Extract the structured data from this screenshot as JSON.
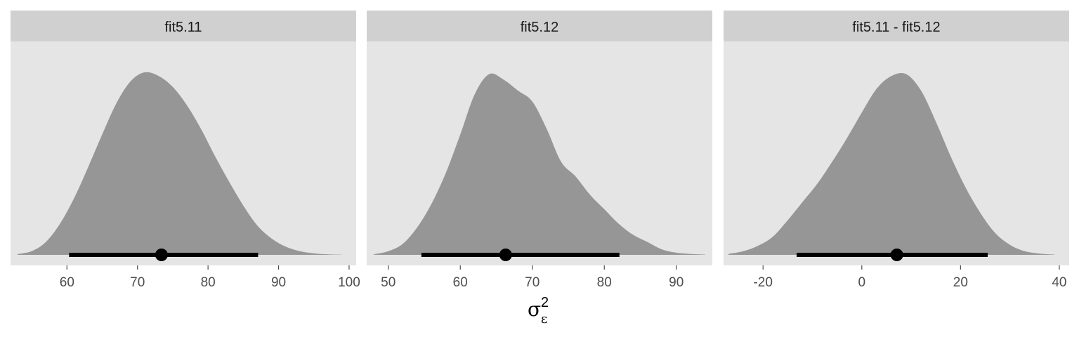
{
  "colors": {
    "panel_bg": "#e5e5e5",
    "strip_bg": "#d0d0d0",
    "density_fill": "#969696",
    "interval": "#000000",
    "tick": "#4d4d4d"
  },
  "chart_data": {
    "type": "area",
    "subtype": "faceted posterior density with point estimate and interval",
    "xlabel": {
      "symbol": "σ",
      "subscript": "ε",
      "superscript": "2"
    },
    "ylabel": "",
    "grid": false,
    "legend": "none",
    "facets": [
      {
        "name": "fit5.11",
        "xlim": [
          52,
          101
        ],
        "ticks": [
          "60",
          "70",
          "80",
          "90",
          "100"
        ],
        "tick_values": [
          60,
          70,
          80,
          90,
          100
        ],
        "x": [
          53,
          55,
          57,
          59,
          61,
          63,
          65,
          67,
          69,
          71,
          73,
          75,
          77,
          79,
          81,
          83,
          85,
          87,
          89,
          91,
          93,
          95,
          97,
          99
        ],
        "density": [
          0.004,
          0.02,
          0.07,
          0.17,
          0.31,
          0.48,
          0.66,
          0.83,
          0.95,
          1.0,
          0.98,
          0.92,
          0.82,
          0.69,
          0.54,
          0.4,
          0.27,
          0.16,
          0.09,
          0.045,
          0.02,
          0.008,
          0.003,
          0.001
        ],
        "point": 73.4,
        "interval": [
          60.3,
          87.1
        ]
      },
      {
        "name": "fit5.12",
        "xlim": [
          47,
          95
        ],
        "ticks": [
          "50",
          "60",
          "70",
          "80",
          "90"
        ],
        "tick_values": [
          50,
          60,
          70,
          80,
          90
        ],
        "x": [
          48,
          50,
          52,
          54,
          56,
          58,
          60,
          62,
          64,
          66,
          68,
          70,
          72,
          74,
          76,
          78,
          80,
          82,
          84,
          86,
          88,
          90,
          92,
          94
        ],
        "density": [
          0.003,
          0.02,
          0.06,
          0.15,
          0.28,
          0.45,
          0.66,
          0.88,
          0.99,
          0.96,
          0.9,
          0.84,
          0.69,
          0.51,
          0.43,
          0.33,
          0.25,
          0.17,
          0.11,
          0.07,
          0.03,
          0.012,
          0.005,
          0.002
        ],
        "point": 66.3,
        "interval": [
          54.6,
          82.1
        ]
      },
      {
        "name": "fit5.11 - fit5.12",
        "xlim": [
          -28,
          42
        ],
        "ticks": [
          "-20",
          "0",
          "20",
          "40"
        ],
        "tick_values": [
          -20,
          0,
          20,
          40
        ],
        "x": [
          -27,
          -24,
          -21,
          -18,
          -15,
          -12,
          -9,
          -6,
          -3,
          0,
          3,
          6,
          9,
          12,
          15,
          18,
          21,
          24,
          27,
          30,
          33,
          36,
          39
        ],
        "density": [
          0.005,
          0.02,
          0.05,
          0.1,
          0.19,
          0.29,
          0.39,
          0.51,
          0.64,
          0.78,
          0.91,
          0.98,
          0.99,
          0.9,
          0.73,
          0.54,
          0.37,
          0.23,
          0.12,
          0.055,
          0.02,
          0.007,
          0.002
        ],
        "point": 7.1,
        "interval": [
          -13.2,
          25.5
        ]
      }
    ]
  }
}
